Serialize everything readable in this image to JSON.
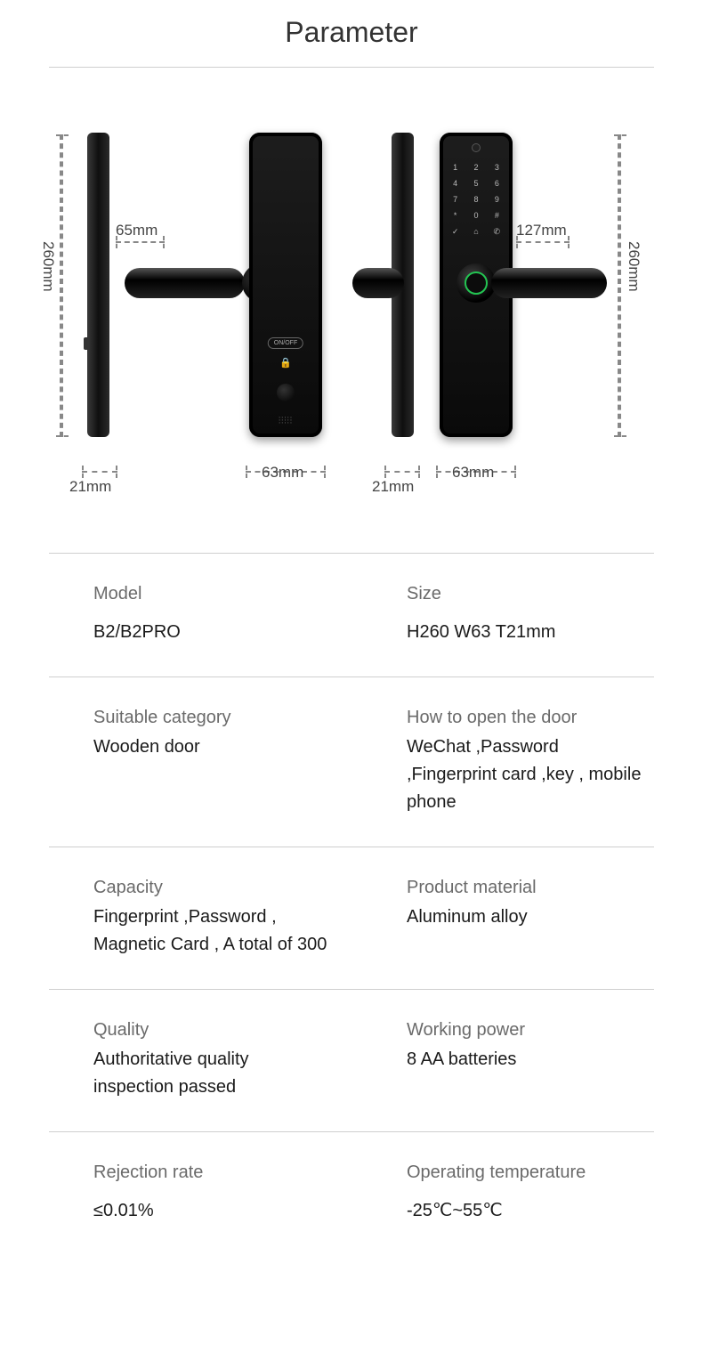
{
  "title": "Parameter",
  "diagram": {
    "height_label_left": "260mm",
    "height_label_right": "260mm",
    "handle_len_left": "65mm",
    "handle_len_right": "127mm",
    "thickness_left": "21mm",
    "thickness_right": "21mm",
    "width_left": "63mm",
    "width_right": "63mm",
    "keypad": [
      "1",
      "2",
      "3",
      "4",
      "5",
      "6",
      "7",
      "8",
      "9",
      "*",
      "0",
      "#",
      "✓",
      "⌂",
      "✆"
    ],
    "btn_text": "ON/OFF",
    "lock_glyph": "⌂",
    "colors": {
      "body": "#0d0d0d",
      "fp_ring": "#23c552",
      "dim": "#888888",
      "text": "#444444"
    }
  },
  "specs": [
    {
      "tight": false,
      "left_label": "Model",
      "left_value": "B2/B2PRO",
      "right_label": "Size",
      "right_value": "H260 W63 T21mm"
    },
    {
      "tight": true,
      "left_label": "Suitable category",
      "left_value": "Wooden door",
      "right_label": "How to open the door",
      "right_value": "WeChat ,Password ,Fingerprint card ,key , mobile phone"
    },
    {
      "tight": true,
      "left_label": "Capacity",
      "left_value": "Fingerprint ,Password , Magnetic Card , A total of 300",
      "right_label": "Product material",
      "right_value": " Aluminum alloy"
    },
    {
      "tight": true,
      "left_label": "Quality",
      "left_value": "Authoritative quality inspection passed",
      "right_label": "Working power",
      "right_value": "8 AA batteries"
    },
    {
      "tight": false,
      "left_label": "Rejection rate",
      "left_value": "≤0.01%",
      "right_label": "Operating temperature",
      "right_value": "-25℃~55℃"
    }
  ]
}
